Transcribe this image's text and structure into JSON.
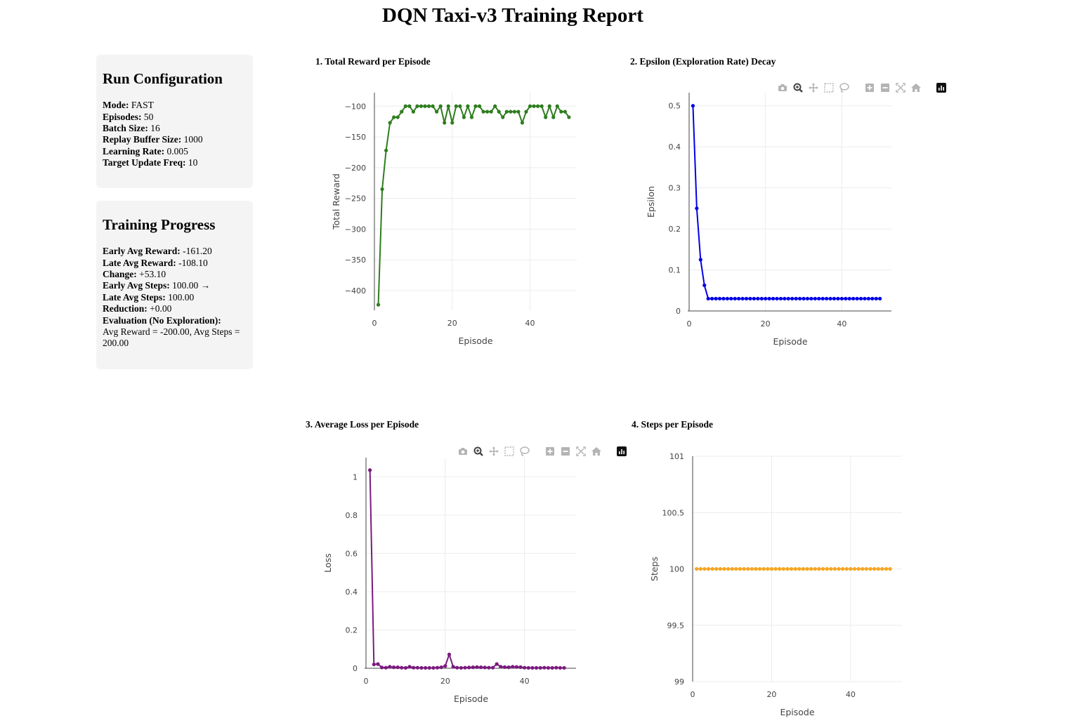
{
  "title": "DQN Taxi-v3 Training Report",
  "config": {
    "heading": "Run Configuration",
    "rows": [
      {
        "label": "Mode:",
        "value": "FAST"
      },
      {
        "label": "Episodes:",
        "value": "50"
      },
      {
        "label": "Batch Size:",
        "value": "16"
      },
      {
        "label": "Replay Buffer Size:",
        "value": "1000"
      },
      {
        "label": "Learning Rate:",
        "value": "0.005"
      },
      {
        "label": "Target Update Freq:",
        "value": "10"
      }
    ]
  },
  "progress": {
    "heading": "Training Progress",
    "rows": [
      {
        "label": "Early Avg Reward:",
        "value": "-161.20"
      },
      {
        "label": "Late Avg Reward:",
        "value": "-108.10"
      },
      {
        "label": "Change:",
        "value": "+53.10"
      },
      {
        "label": "Early Avg Steps:",
        "value": "100.00 →"
      },
      {
        "label": "Late Avg Steps:",
        "value": "100.00"
      },
      {
        "label": "Reduction:",
        "value": "+0.00"
      },
      {
        "label": "Evaluation (No Exploration):",
        "value": ""
      }
    ],
    "evaluation_text": "Avg Reward = -200.00, Avg Steps = 200.00"
  },
  "modebar_icons": [
    "camera-icon",
    "zoom-icon",
    "pan-icon",
    "box-select-icon",
    "lasso-select-icon",
    "zoom-in-icon",
    "zoom-out-icon",
    "autoscale-icon",
    "reset-axes-icon",
    "plotly-logo-icon"
  ],
  "chart_data": [
    {
      "type": "line",
      "title": "1. Total Reward per Episode",
      "xlabel": "Episode",
      "ylabel": "Total Reward",
      "color": "#2e7d1e",
      "xlim": [
        0,
        52
      ],
      "ylim": [
        -432,
        -78
      ],
      "xticks": [
        0,
        20,
        40
      ],
      "yticks": [
        -400,
        -350,
        -300,
        -250,
        -200,
        -150,
        -100
      ],
      "ytick_labels": [
        "−400",
        "−350",
        "−300",
        "−250",
        "−200",
        "−150",
        "−100"
      ],
      "x": [
        1,
        2,
        3,
        4,
        5,
        6,
        7,
        8,
        9,
        10,
        11,
        12,
        13,
        14,
        15,
        16,
        17,
        18,
        19,
        20,
        21,
        22,
        23,
        24,
        25,
        26,
        27,
        28,
        29,
        30,
        31,
        32,
        33,
        34,
        35,
        36,
        37,
        38,
        39,
        40,
        41,
        42,
        43,
        44,
        45,
        46,
        47,
        48,
        49,
        50
      ],
      "y": [
        -423,
        -235,
        -172,
        -127,
        -118,
        -118,
        -109,
        -100,
        -100,
        -109,
        -100,
        -100,
        -100,
        -100,
        -100,
        -109,
        -100,
        -127,
        -100,
        -127,
        -100,
        -100,
        -118,
        -100,
        -118,
        -100,
        -100,
        -109,
        -109,
        -109,
        -100,
        -109,
        -118,
        -109,
        -109,
        -109,
        -109,
        -127,
        -109,
        -100,
        -100,
        -100,
        -100,
        -118,
        -100,
        -118,
        -100,
        -109,
        -109,
        -118
      ],
      "grid": true,
      "modebar": false
    },
    {
      "type": "line",
      "title": "2. Epsilon (Exploration Rate) Decay",
      "xlabel": "Episode",
      "ylabel": "Epsilon",
      "color": "#0000e6",
      "xlim": [
        0,
        53
      ],
      "ylim": [
        0,
        0.532
      ],
      "xticks": [
        0,
        20,
        40
      ],
      "yticks": [
        0,
        0.1,
        0.2,
        0.3,
        0.4,
        0.5
      ],
      "ytick_labels": [
        "0",
        "0.1",
        "0.2",
        "0.3",
        "0.4",
        "0.5"
      ],
      "x": [
        1,
        2,
        3,
        4,
        5,
        6,
        7,
        8,
        9,
        10,
        11,
        12,
        13,
        14,
        15,
        16,
        17,
        18,
        19,
        20,
        21,
        22,
        23,
        24,
        25,
        26,
        27,
        28,
        29,
        30,
        31,
        32,
        33,
        34,
        35,
        36,
        37,
        38,
        39,
        40,
        41,
        42,
        43,
        44,
        45,
        46,
        47,
        48,
        49,
        50
      ],
      "y": [
        0.5,
        0.25,
        0.125,
        0.0625,
        0.03,
        0.03,
        0.03,
        0.03,
        0.03,
        0.03,
        0.03,
        0.03,
        0.03,
        0.03,
        0.03,
        0.03,
        0.03,
        0.03,
        0.03,
        0.03,
        0.03,
        0.03,
        0.03,
        0.03,
        0.03,
        0.03,
        0.03,
        0.03,
        0.03,
        0.03,
        0.03,
        0.03,
        0.03,
        0.03,
        0.03,
        0.03,
        0.03,
        0.03,
        0.03,
        0.03,
        0.03,
        0.03,
        0.03,
        0.03,
        0.03,
        0.03,
        0.03,
        0.03,
        0.03,
        0.03
      ],
      "grid": true,
      "modebar": true
    },
    {
      "type": "line",
      "title": "3. Average Loss per Episode",
      "xlabel": "Episode",
      "ylabel": "Loss",
      "color": "#7b1a7e",
      "xlim": [
        0,
        53
      ],
      "ylim": [
        0,
        1.1
      ],
      "xticks": [
        0,
        20,
        40
      ],
      "yticks": [
        0,
        0.2,
        0.4,
        0.6,
        0.8,
        1
      ],
      "ytick_labels": [
        "0",
        "0.2",
        "0.4",
        "0.6",
        "0.8",
        "1"
      ],
      "x": [
        1,
        2,
        3,
        4,
        5,
        6,
        7,
        8,
        9,
        10,
        11,
        12,
        13,
        14,
        15,
        16,
        17,
        18,
        19,
        20,
        21,
        22,
        23,
        24,
        25,
        26,
        27,
        28,
        29,
        30,
        31,
        32,
        33,
        34,
        35,
        36,
        37,
        38,
        39,
        40,
        41,
        42,
        43,
        44,
        45,
        46,
        47,
        48,
        49,
        50
      ],
      "y": [
        1.035,
        0.02,
        0.022,
        0.004,
        0.003,
        0.008,
        0.005,
        0.005,
        0.003,
        0.002,
        0.008,
        0.003,
        0.003,
        0.002,
        0.002,
        0.002,
        0.002,
        0.003,
        0.005,
        0.012,
        0.072,
        0.008,
        0.003,
        0.002,
        0.003,
        0.004,
        0.005,
        0.006,
        0.005,
        0.004,
        0.003,
        0.003,
        0.022,
        0.008,
        0.006,
        0.005,
        0.008,
        0.007,
        0.006,
        0.003,
        0.002,
        0.002,
        0.002,
        0.002,
        0.003,
        0.002,
        0.002,
        0.003,
        0.002,
        0.002
      ],
      "grid": true,
      "modebar": true
    },
    {
      "type": "line",
      "title": "4. Steps per Episode",
      "xlabel": "Episode",
      "ylabel": "Steps",
      "color": "#f5a623",
      "xlim": [
        0,
        53
      ],
      "ylim": [
        99,
        101
      ],
      "xticks": [
        0,
        20,
        40
      ],
      "yticks": [
        99,
        99.5,
        100,
        100.5,
        101
      ],
      "ytick_labels": [
        "99",
        "99.5",
        "100",
        "100.5",
        "101"
      ],
      "x": [
        1,
        2,
        3,
        4,
        5,
        6,
        7,
        8,
        9,
        10,
        11,
        12,
        13,
        14,
        15,
        16,
        17,
        18,
        19,
        20,
        21,
        22,
        23,
        24,
        25,
        26,
        27,
        28,
        29,
        30,
        31,
        32,
        33,
        34,
        35,
        36,
        37,
        38,
        39,
        40,
        41,
        42,
        43,
        44,
        45,
        46,
        47,
        48,
        49,
        50
      ],
      "y": [
        100,
        100,
        100,
        100,
        100,
        100,
        100,
        100,
        100,
        100,
        100,
        100,
        100,
        100,
        100,
        100,
        100,
        100,
        100,
        100,
        100,
        100,
        100,
        100,
        100,
        100,
        100,
        100,
        100,
        100,
        100,
        100,
        100,
        100,
        100,
        100,
        100,
        100,
        100,
        100,
        100,
        100,
        100,
        100,
        100,
        100,
        100,
        100,
        100,
        100
      ],
      "grid": true,
      "modebar": false
    }
  ]
}
